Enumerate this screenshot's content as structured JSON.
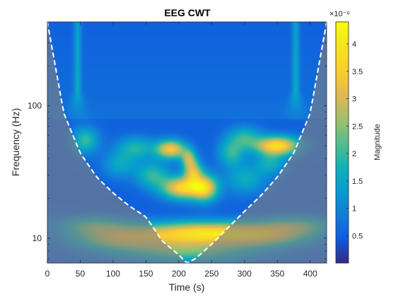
{
  "chart_data": {
    "type": "heatmap",
    "title": "EEG CWT",
    "xlabel": "Time (s)",
    "ylabel": "Frequency (Hz)",
    "colorbar_label": "Magnitude",
    "colorbar_exponent": "×10⁻⁶",
    "colormap": "parula",
    "xlim": [
      0,
      425
    ],
    "ylim": [
      6.5,
      430
    ],
    "y_scale": "log",
    "x_ticks": [
      0,
      50,
      100,
      150,
      200,
      250,
      300,
      350,
      400
    ],
    "x_tick_labels": [
      "0",
      "50",
      "100",
      "150",
      "200",
      "250",
      "300",
      "350",
      "400"
    ],
    "y_ticks": [
      10,
      100
    ],
    "y_tick_labels": [
      "10",
      "100"
    ],
    "clim": [
      0,
      4.4
    ],
    "cbar_ticks": [
      0.5,
      1,
      1.5,
      2,
      2.5,
      3,
      3.5,
      4
    ],
    "cbar_tick_labels": [
      "0.5",
      "1",
      "1.5",
      "2",
      "2.5",
      "3",
      "3.5",
      "4"
    ],
    "cone_of_influence": {
      "shaded": true,
      "line_style": "dashed",
      "line_color": "#ffffff",
      "x": [
        0,
        25,
        50,
        75,
        100,
        125,
        150,
        175,
        200,
        212,
        225,
        250,
        275,
        300,
        325,
        350,
        375,
        400,
        425
      ],
      "freq": [
        430,
        88,
        44,
        29,
        22,
        17.5,
        14.5,
        9.5,
        7.5,
        6.5,
        7.0,
        9.0,
        12.0,
        16.0,
        21.0,
        29.0,
        44.0,
        88.0,
        430
      ]
    },
    "background_level": 0.5,
    "features": [
      {
        "kind": "spike",
        "t": 46,
        "freq_low": 85,
        "freq_high": 430,
        "width_s": 4,
        "level": 1.4
      },
      {
        "kind": "spike",
        "t": 378,
        "freq_low": 85,
        "freq_high": 430,
        "width_s": 4,
        "level": 1.4
      },
      {
        "kind": "blob",
        "t": 58,
        "freq": 55,
        "sigma_t": 14,
        "sigma_f_dec": 0.07,
        "level": 2.0
      },
      {
        "kind": "blob",
        "t": 188,
        "freq": 47,
        "sigma_t": 16,
        "sigma_f_dec": 0.05,
        "level": 3.4
      },
      {
        "kind": "blob",
        "t": 215,
        "freq": 40,
        "sigma_t": 8,
        "sigma_f_dec": 0.05,
        "level": 2.3
      },
      {
        "kind": "blob",
        "t": 222,
        "freq": 32,
        "sigma_t": 10,
        "sigma_f_dec": 0.06,
        "level": 2.7
      },
      {
        "kind": "blob",
        "t": 206,
        "freq": 24,
        "sigma_t": 22,
        "sigma_f_dec": 0.06,
        "level": 3.6
      },
      {
        "kind": "blob",
        "t": 240,
        "freq": 24,
        "sigma_t": 14,
        "sigma_f_dec": 0.07,
        "level": 3.1
      },
      {
        "kind": "blob",
        "t": 135,
        "freq": 48,
        "sigma_t": 20,
        "sigma_f_dec": 0.06,
        "level": 1.8
      },
      {
        "kind": "blob",
        "t": 110,
        "freq": 36,
        "sigma_t": 18,
        "sigma_f_dec": 0.07,
        "level": 1.5
      },
      {
        "kind": "blob",
        "t": 160,
        "freq": 30,
        "sigma_t": 18,
        "sigma_f_dec": 0.07,
        "level": 1.9
      },
      {
        "kind": "blob",
        "t": 280,
        "freq": 44,
        "sigma_t": 14,
        "sigma_f_dec": 0.07,
        "level": 1.9
      },
      {
        "kind": "blob",
        "t": 302,
        "freq": 28,
        "sigma_t": 22,
        "sigma_f_dec": 0.08,
        "level": 1.6
      },
      {
        "kind": "blob",
        "t": 350,
        "freq": 50,
        "sigma_t": 24,
        "sigma_f_dec": 0.05,
        "level": 3.8
      },
      {
        "kind": "blob",
        "t": 340,
        "freq": 37,
        "sigma_t": 16,
        "sigma_f_dec": 0.06,
        "level": 1.6
      },
      {
        "kind": "blob",
        "t": 300,
        "freq": 58,
        "sigma_t": 18,
        "sigma_f_dec": 0.06,
        "level": 1.8
      },
      {
        "kind": "blob",
        "t": 230,
        "freq": 11,
        "sigma_t": 60,
        "sigma_f_dec": 0.06,
        "level": 3.5
      },
      {
        "kind": "blob",
        "t": 110,
        "freq": 10,
        "sigma_t": 50,
        "sigma_f_dec": 0.06,
        "level": 2.6
      },
      {
        "kind": "blob",
        "t": 330,
        "freq": 10.5,
        "sigma_t": 50,
        "sigma_f_dec": 0.06,
        "level": 2.7
      },
      {
        "kind": "blob",
        "t": 70,
        "freq": 12.5,
        "sigma_t": 40,
        "sigma_f_dec": 0.05,
        "level": 1.9
      },
      {
        "kind": "blob",
        "t": 380,
        "freq": 12.5,
        "sigma_t": 40,
        "sigma_f_dec": 0.05,
        "level": 1.9
      },
      {
        "kind": "blob",
        "t": 212,
        "freq": 8,
        "sigma_t": 70,
        "sigma_f_dec": 0.06,
        "level": 2.2
      }
    ]
  }
}
